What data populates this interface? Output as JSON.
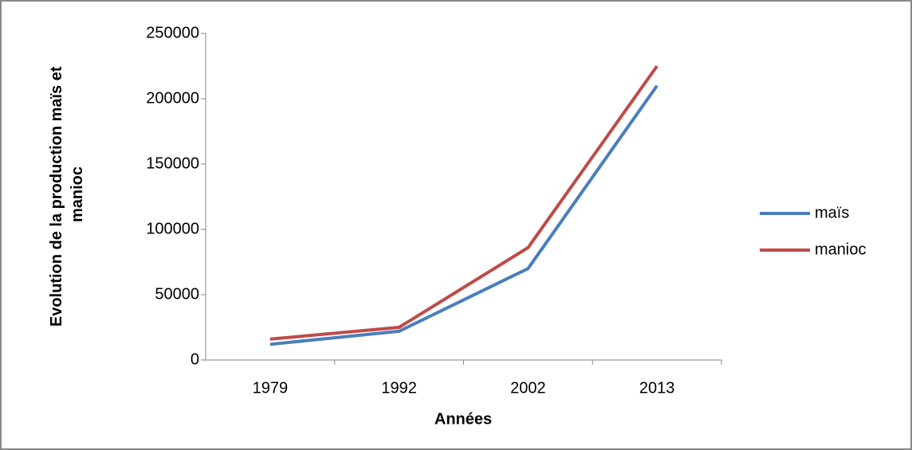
{
  "chart_data": {
    "type": "line",
    "ylabel": [
      "Evolution de la production maïs et",
      "manioc"
    ],
    "xlabel": "Années",
    "categories": [
      "1979",
      "1992",
      "2002",
      "2013"
    ],
    "series": [
      {
        "name": "maïs",
        "color": "#4a7ebb",
        "values": [
          12000,
          22000,
          70000,
          210000
        ]
      },
      {
        "name": "manioc",
        "color": "#be4b48",
        "values": [
          16000,
          25000,
          86000,
          225000
        ]
      }
    ],
    "ylim": [
      0,
      250000
    ],
    "yticks": [
      0,
      50000,
      100000,
      150000,
      200000,
      250000
    ],
    "grid": false,
    "legend": "right"
  }
}
